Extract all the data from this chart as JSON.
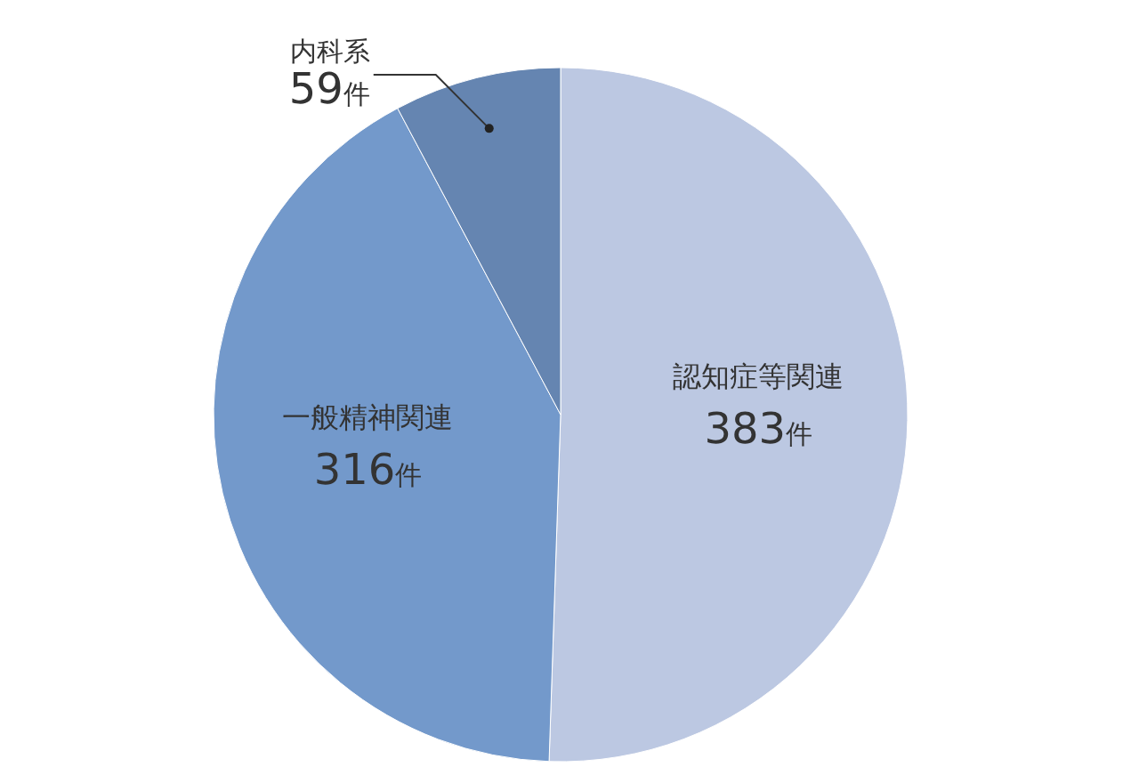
{
  "chart_data": {
    "type": "pie",
    "categories": [
      "認知症等関連",
      "一般精神関連",
      "内科系"
    ],
    "values": [
      383,
      316,
      59
    ],
    "colors": [
      "#bcc8e2",
      "#7399cb",
      "#6585b1"
    ],
    "value_labels": [
      "383件",
      "316件",
      "59件"
    ]
  }
}
